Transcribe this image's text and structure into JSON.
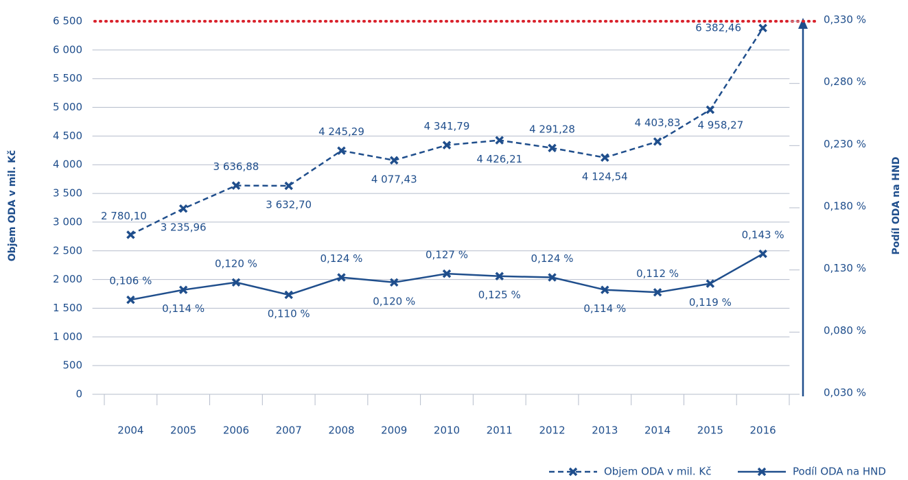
{
  "chart_data": {
    "type": "line",
    "y_label": "Objem ODA v mil. Kč",
    "y2_label": "Podíl ODA na HND",
    "categories": [
      "2004",
      "2005",
      "2006",
      "2007",
      "2008",
      "2009",
      "2010",
      "2011",
      "2012",
      "2013",
      "2014",
      "2015",
      "2016"
    ],
    "series": [
      {
        "name": "Objem ODA v mil. Kč",
        "color": "#1f4e8c",
        "dash": true,
        "values": [
          2780.1,
          3235.96,
          3636.88,
          3632.7,
          4245.29,
          4077.43,
          4341.79,
          4426.21,
          4291.28,
          4124.54,
          4403.83,
          4958.27,
          6382.46
        ],
        "value_labels": [
          "2 780,10",
          "3 235,96",
          "3 636,88",
          "3 632,70",
          "4 245,29",
          "4 077,43",
          "4 341,79",
          "4 426,21",
          "4 291,28",
          "4 124,54",
          "4 403,83",
          "4 958,27",
          "6 382,46"
        ]
      },
      {
        "name": "Podíl ODA na HND",
        "color": "#1f4e8c",
        "dash": false,
        "axis": "y2",
        "values": [
          0.106,
          0.114,
          0.12,
          0.11,
          0.124,
          0.12,
          0.127,
          0.125,
          0.124,
          0.114,
          0.112,
          0.119,
          0.143
        ],
        "value_labels": [
          "0,106 %",
          "0,114 %",
          "0,120 %",
          "0,110 %",
          "0,124 %",
          "0,120 %",
          "0,127 %",
          "0,125 %",
          "0,124 %",
          "0,114 %",
          "0,112 %",
          "0,119 %",
          "0,143 %"
        ]
      }
    ],
    "ylim": [
      0,
      6500
    ],
    "yticks": [
      0,
      500,
      {
        "value": 1000,
        "label": "1 000"
      },
      {
        "value": 1500,
        "label": "1 500"
      },
      {
        "value": 2000,
        "label": "2 000"
      },
      {
        "value": 2500,
        "label": "2 500"
      },
      {
        "value": 3000,
        "label": "3 000"
      },
      {
        "value": 3500,
        "label": "3 500"
      },
      {
        "value": 4000,
        "label": "4 000"
      },
      {
        "value": 4500,
        "label": "4 500"
      },
      {
        "value": 5000,
        "label": "5 000"
      },
      {
        "value": 5500,
        "label": "5 500"
      },
      {
        "value": 6000,
        "label": "6 000"
      },
      {
        "value": 6500,
        "label": "6 500"
      }
    ],
    "y2lim": [
      0.03,
      0.33
    ],
    "y2ticks": [
      {
        "value": 0.03,
        "label": "0,030 %"
      },
      {
        "value": 0.08,
        "label": "0,080 %"
      },
      {
        "value": 0.13,
        "label": "0,130 %"
      },
      {
        "value": 0.18,
        "label": "0,180 %"
      },
      {
        "value": 0.23,
        "label": "0,230 %"
      },
      {
        "value": 0.28,
        "label": "0,280 %"
      },
      {
        "value": 0.33,
        "label": "0,330 %"
      }
    ],
    "grid": true,
    "legend": "bottom-right"
  }
}
